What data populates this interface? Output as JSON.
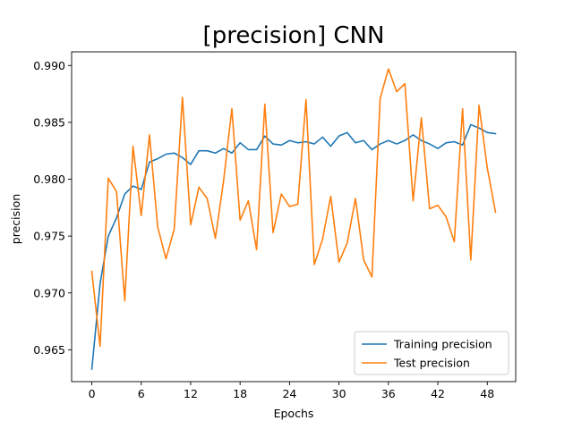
{
  "chart_data": {
    "type": "line",
    "title": "[precision] CNN",
    "xlabel": "Epochs",
    "ylabel": "precision",
    "xlim": [
      -2.45,
      51.45
    ],
    "ylim": [
      0.9622,
      0.9912
    ],
    "xticks": [
      0,
      6,
      12,
      18,
      24,
      30,
      36,
      42,
      48
    ],
    "yticks": [
      0.965,
      0.97,
      0.975,
      0.98,
      0.985,
      0.99
    ],
    "ytick_labels": [
      "0.965",
      "0.970",
      "0.975",
      "0.980",
      "0.985",
      "0.990"
    ],
    "grid": false,
    "legend_position": "lower right",
    "x": [
      0,
      1,
      2,
      3,
      4,
      5,
      6,
      7,
      8,
      9,
      10,
      11,
      12,
      13,
      14,
      15,
      16,
      17,
      18,
      19,
      20,
      21,
      22,
      23,
      24,
      25,
      26,
      27,
      28,
      29,
      30,
      31,
      32,
      33,
      34,
      35,
      36,
      37,
      38,
      39,
      40,
      41,
      42,
      43,
      44,
      45,
      46,
      47,
      48,
      49
    ],
    "series": [
      {
        "name": "Training precision",
        "color": "#1f77b4",
        "values": [
          0.9633,
          0.9708,
          0.975,
          0.9766,
          0.9787,
          0.9794,
          0.9791,
          0.9815,
          0.9818,
          0.9822,
          0.9823,
          0.9819,
          0.9813,
          0.9825,
          0.9825,
          0.9823,
          0.9827,
          0.9823,
          0.9832,
          0.9826,
          0.9826,
          0.9838,
          0.9831,
          0.983,
          0.9834,
          0.9832,
          0.9833,
          0.9831,
          0.9837,
          0.9829,
          0.9838,
          0.9841,
          0.9832,
          0.9834,
          0.9826,
          0.9831,
          0.9834,
          0.9831,
          0.9834,
          0.9839,
          0.9834,
          0.9831,
          0.9827,
          0.9832,
          0.9833,
          0.983,
          0.9848,
          0.9845,
          0.9841,
          0.984
        ]
      },
      {
        "name": "Test precision",
        "color": "#ff7f0e",
        "values": [
          0.9719,
          0.9653,
          0.9801,
          0.9789,
          0.9693,
          0.9829,
          0.9768,
          0.9839,
          0.9758,
          0.973,
          0.9756,
          0.9872,
          0.976,
          0.9793,
          0.9783,
          0.9748,
          0.9799,
          0.9862,
          0.9764,
          0.9781,
          0.9738,
          0.9866,
          0.9753,
          0.9787,
          0.9776,
          0.9778,
          0.987,
          0.9725,
          0.9747,
          0.9785,
          0.9727,
          0.9744,
          0.9783,
          0.9729,
          0.9714,
          0.9871,
          0.9897,
          0.9877,
          0.9884,
          0.9781,
          0.9854,
          0.9774,
          0.9777,
          0.9767,
          0.9745,
          0.9862,
          0.9729,
          0.9865,
          0.981,
          0.9771
        ]
      }
    ]
  }
}
